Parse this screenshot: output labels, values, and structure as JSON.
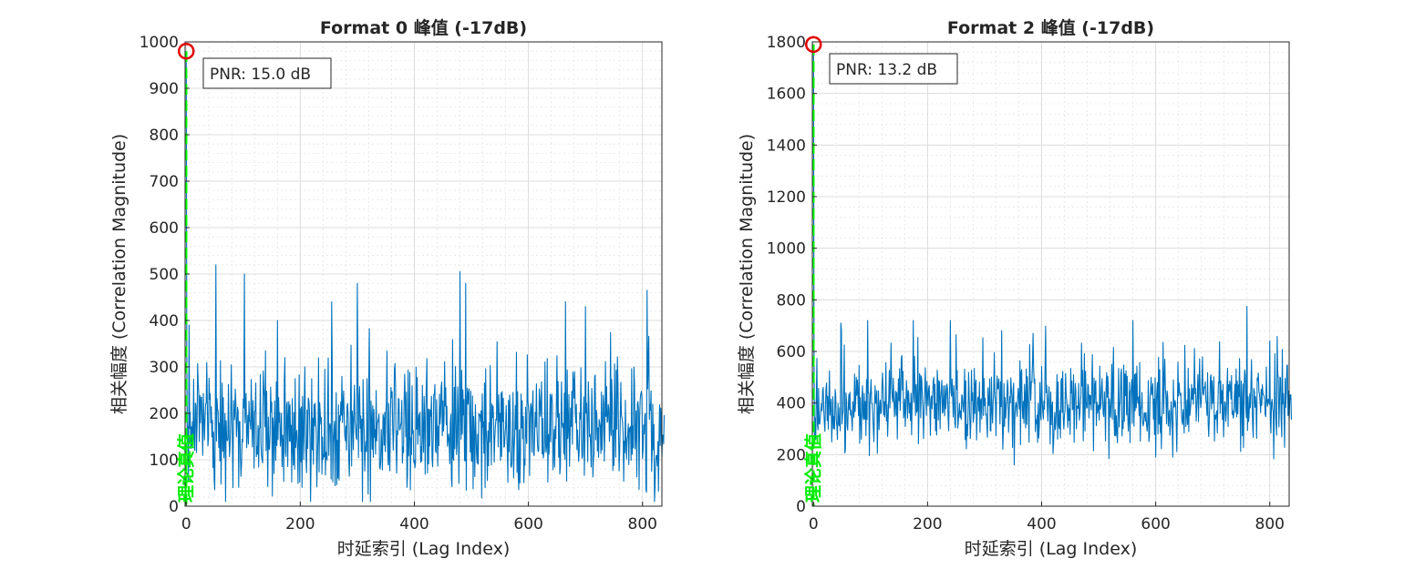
{
  "chart_data": [
    {
      "type": "line",
      "title": "Format 0 峰值 (-17dB)",
      "xlabel": "时延索引 (Lag Index)",
      "ylabel": "相关幅度 (Correlation Magnitude)",
      "xlim": [
        -2,
        834
      ],
      "ylim": [
        0,
        1000
      ],
      "xticks": [
        0,
        200,
        400,
        600,
        800
      ],
      "yticks": [
        0,
        100,
        200,
        300,
        400,
        500,
        600,
        700,
        800,
        900,
        1000
      ],
      "grid": true,
      "minor_grid": true,
      "series": [
        {
          "color": "#0072bd",
          "points": 839,
          "noise_mean": 170,
          "noise_min": 10,
          "noise_max": 520,
          "highlight_values": [
            [
              0,
              980
            ],
            [
              1,
              340
            ],
            [
              2,
              140
            ],
            [
              5,
              390
            ],
            [
              52,
              520
            ],
            [
              102,
              500
            ],
            [
              160,
              400
            ],
            [
              255,
              440
            ],
            [
              300,
              480
            ],
            [
              480,
              505
            ],
            [
              490,
              480
            ],
            [
              665,
              440
            ],
            [
              700,
              430
            ],
            [
              808,
              465
            ]
          ]
        }
      ],
      "peak": {
        "x": 0,
        "y": 980,
        "marker": "red circle"
      },
      "reference_line": {
        "x": 0,
        "label": "理论真值",
        "color": "#00ff00"
      },
      "annotation": "PNR: 15.0 dB"
    },
    {
      "type": "line",
      "title": "Format 2 峰值 (-17dB)",
      "xlabel": "时延索引 (Lag Index)",
      "ylabel": "相关幅度 (Correlation Magnitude)",
      "xlim": [
        -2,
        834
      ],
      "ylim": [
        0,
        1800
      ],
      "xticks": [
        0,
        200,
        400,
        600,
        800
      ],
      "yticks": [
        0,
        200,
        400,
        600,
        800,
        1000,
        1200,
        1400,
        1600,
        1800
      ],
      "grid": true,
      "minor_grid": true,
      "series": [
        {
          "color": "#0072bd",
          "points": 839,
          "noise_mean": 400,
          "noise_min": 160,
          "noise_max": 775,
          "highlight_values": [
            [
              0,
              1790
            ],
            [
              1,
              600
            ],
            [
              2,
              250
            ],
            [
              48,
              710
            ],
            [
              95,
              720
            ],
            [
              175,
              720
            ],
            [
              240,
              720
            ],
            [
              330,
              680
            ],
            [
              385,
              670
            ],
            [
              560,
              720
            ],
            [
              760,
              775
            ],
            [
              800,
              640
            ]
          ]
        }
      ],
      "peak": {
        "x": 0,
        "y": 1790,
        "marker": "red circle"
      },
      "reference_line": {
        "x": 0,
        "label": "理论真值",
        "color": "#00ff00"
      },
      "annotation": "PNR: 13.2 dB"
    }
  ]
}
